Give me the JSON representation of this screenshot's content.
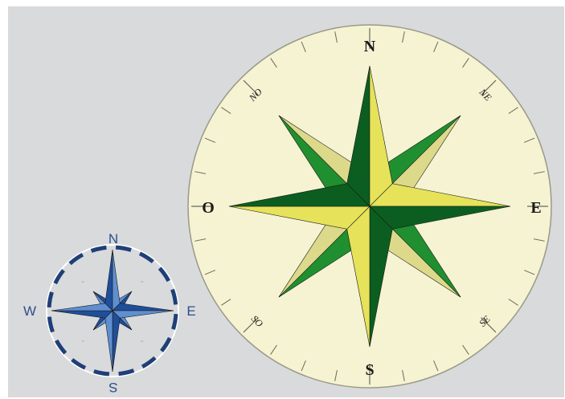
{
  "large_compass": {
    "cardinals": {
      "north": "N",
      "east": "E",
      "south": "S",
      "west": "O"
    },
    "intercardinals": {
      "northeast": "NE",
      "southeast": "SE",
      "southwest": "SO",
      "northwest": "NO"
    },
    "colors": {
      "face": "#f5f3d2",
      "rim": "#9a9a88",
      "dark_green": "#0b5e1f",
      "mid_green": "#1f8f2f",
      "light_yellow": "#e6e25a",
      "pale_yellow": "#ddd98a",
      "ink": "#1a1a1a"
    }
  },
  "small_compass": {
    "cardinals": {
      "north": "N",
      "east": "E",
      "south": "S",
      "west": "W"
    },
    "colors": {
      "ring": "#1f3f78",
      "dark_blue": "#1f4f9a",
      "light_blue": "#5f8fd0",
      "face_stroke": "#ffffff"
    }
  }
}
